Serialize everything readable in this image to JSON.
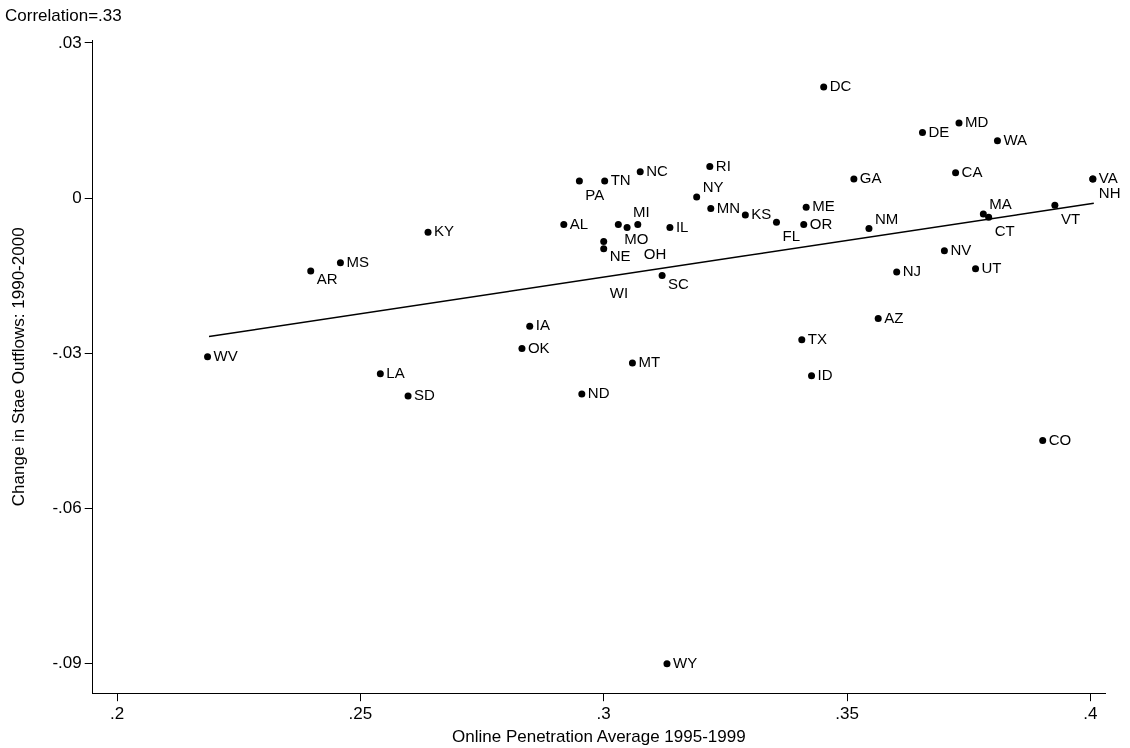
{
  "chart_data": {
    "type": "scatter",
    "subtitle": "Correlation=.33",
    "xlabel": "Online Penetration Average 1995-1999",
    "ylabel": "Change in Stae Outflows: 1990-2000",
    "xlim": [
      0.195,
      0.403
    ],
    "ylim": [
      -0.0958,
      0.0305
    ],
    "xticks": [
      {
        "value": 0.2,
        "label": ".2"
      },
      {
        "value": 0.25,
        "label": ".25"
      },
      {
        "value": 0.3,
        "label": ".3"
      },
      {
        "value": 0.35,
        "label": ".35"
      },
      {
        "value": 0.4,
        "label": ".4"
      }
    ],
    "yticks": [
      {
        "value": 0.03,
        "label": ".03"
      },
      {
        "value": 0,
        "label": "0"
      },
      {
        "value": -0.03,
        "label": "-.03"
      },
      {
        "value": -0.06,
        "label": "-.06"
      },
      {
        "value": -0.09,
        "label": "-.09"
      }
    ],
    "grid": false,
    "legend": false,
    "series": [
      {
        "type": "scatter",
        "color": "#000000",
        "marker": "circle",
        "value_labels": [
          "DC",
          "MD",
          "DE",
          "WA",
          "CA",
          "GA",
          "NC",
          "RI",
          "PA",
          "TN",
          "NY",
          "MN",
          "KS",
          "FL",
          "OR",
          "ME",
          "NM",
          "MA",
          "CT",
          "VT",
          "VA",
          "NH",
          "AL",
          "MO",
          "MI",
          "OH",
          "IL",
          "NE",
          "WI",
          "KY",
          "AR",
          "MS",
          "SC",
          "IA",
          "OK",
          "WV",
          "LA",
          "SD",
          "ND",
          "MT",
          "TX",
          "AZ",
          "ID",
          "NJ",
          "NV",
          "UT",
          "CO",
          "WY"
        ],
        "x": [
          0.3452,
          0.373,
          0.3655,
          0.3809,
          0.3723,
          0.3514,
          0.3075,
          0.3218,
          0.295,
          0.3002,
          0.3191,
          0.322,
          0.3291,
          0.3355,
          0.3411,
          0.3416,
          0.3545,
          0.378,
          0.3791,
          0.3927,
          0.4005,
          0.4005,
          0.2918,
          0.303,
          0.3048,
          0.307,
          0.3136,
          0.3,
          0.3,
          0.2639,
          0.2398,
          0.2459,
          0.312,
          0.2848,
          0.2832,
          0.2186,
          0.2541,
          0.2598,
          0.2955,
          0.3059,
          0.3407,
          0.3564,
          0.3427,
          0.3602,
          0.37,
          0.3764,
          0.3902,
          0.313
        ],
        "values": [
          0.0215,
          0.0145,
          0.0127,
          0.0111,
          0.0049,
          0.0037,
          0.0051,
          0.0061,
          0.0033,
          0.0033,
          0.0002,
          -0.002,
          -0.0033,
          -0.0047,
          -0.0051,
          -0.0018,
          -0.0059,
          -0.0031,
          -0.0037,
          -0.0014,
          0.0037,
          0.0037,
          -0.0051,
          -0.0051,
          -0.0057,
          -0.0051,
          -0.0057,
          -0.0084,
          -0.0098,
          -0.0066,
          -0.0141,
          -0.0125,
          -0.015,
          -0.0248,
          -0.0291,
          -0.0307,
          -0.034,
          -0.0383,
          -0.0379,
          -0.0319,
          -0.0274,
          -0.0233,
          -0.0344,
          -0.0143,
          -0.0102,
          -0.0137,
          -0.0469,
          -0.0901
        ]
      },
      {
        "type": "line",
        "color": "#000000",
        "x": [
          0.2189,
          0.4007
        ],
        "values": [
          -0.0268,
          -0.001
        ]
      }
    ]
  }
}
